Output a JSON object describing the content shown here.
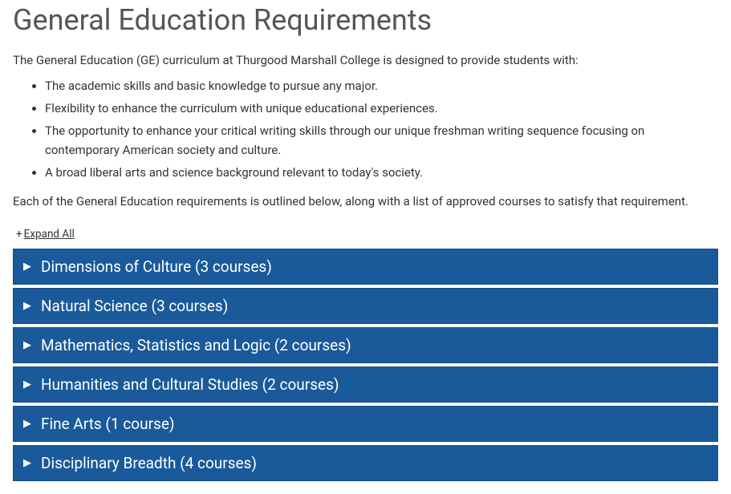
{
  "page_title": "General Education Requirements",
  "intro_text": "The General Education (GE) curriculum at Thurgood Marshall College is designed to provide students with:",
  "bullets": [
    "The academic skills and basic knowledge to pursue any major.",
    "Flexibility to enhance the curriculum with unique educational experiences.",
    "The opportunity to enhance your critical writing skills through our unique freshman writing sequence focusing on contemporary American society and culture.",
    "A broad liberal arts and science background relevant to today's society."
  ],
  "outro_text": "Each of the General Education requirements is outlined below, along with a list of approved courses to satisfy that requirement.",
  "expand_all": {
    "plus": "+",
    "label": "Expand All"
  },
  "accordion_items": [
    {
      "title": "Dimensions of Culture (3 courses)"
    },
    {
      "title": "Natural Science (3 courses)"
    },
    {
      "title": "Mathematics, Statistics and Logic (2 courses)"
    },
    {
      "title": "Humanities and Cultural Studies (2 courses)"
    },
    {
      "title": "Fine Arts (1 course)"
    },
    {
      "title": "Disciplinary Breadth (4 courses)"
    }
  ],
  "colors": {
    "heading": "#555555",
    "body_text": "#333333",
    "accordion_bg": "#1a5a9a",
    "accordion_text": "#ffffff",
    "accordion_border": "#154d84",
    "background": "#ffffff"
  }
}
